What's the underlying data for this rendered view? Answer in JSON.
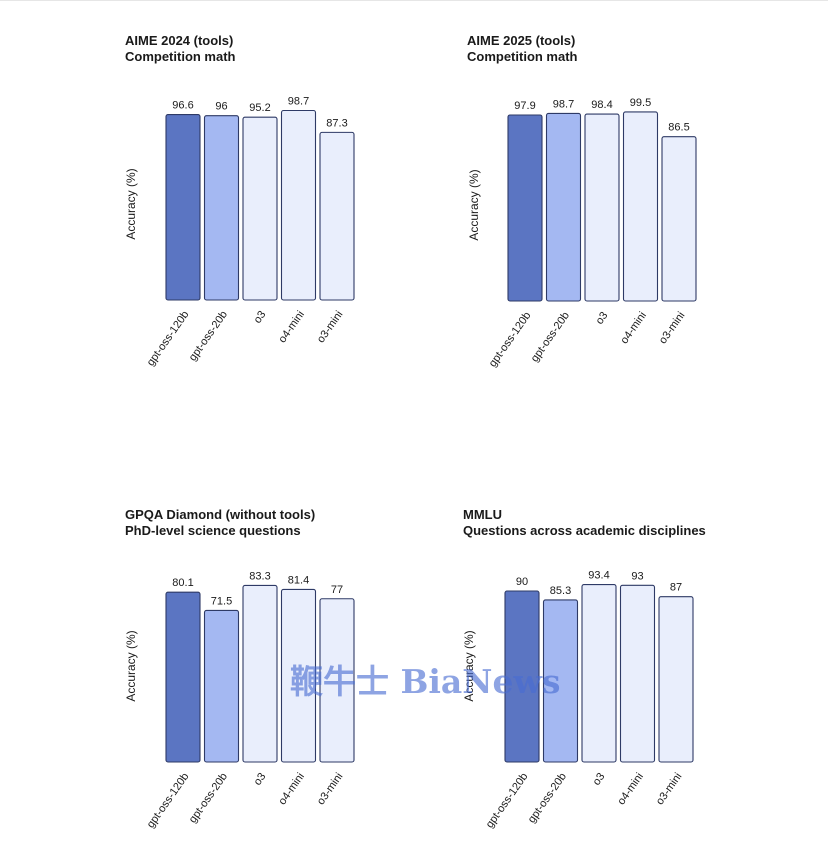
{
  "colors": {
    "gpt-oss-120b": "#5b75c2",
    "gpt-oss-20b": "#a4b8f2",
    "o3": "#e9eefc",
    "o4-mini": "#e9eefc",
    "o3-mini": "#e9eefc",
    "stroke": "#2e3a66"
  },
  "watermark": "鞭牛士 BiaNews",
  "chart_data": [
    {
      "type": "bar",
      "title": "AIME 2024 (tools)",
      "subtitle": "Competition math",
      "ylabel": "Accuracy (%)",
      "xlabel": "",
      "ylim": [
        0,
        100
      ],
      "grid": false,
      "categories": [
        "gpt-oss-120b",
        "gpt-oss-20b",
        "o3",
        "o4-mini",
        "o3-mini"
      ],
      "values": [
        96.6,
        96,
        95.2,
        98.7,
        87.3
      ],
      "labels": [
        "96.6",
        "96",
        "95.2",
        "98.7",
        "87.3"
      ]
    },
    {
      "type": "bar",
      "title": "AIME 2025 (tools)",
      "subtitle": "Competition math",
      "ylabel": "Accuracy (%)",
      "xlabel": "",
      "ylim": [
        0,
        100
      ],
      "grid": false,
      "categories": [
        "gpt-oss-120b",
        "gpt-oss-20b",
        "o3",
        "o4-mini",
        "o3-mini"
      ],
      "values": [
        97.9,
        98.7,
        98.4,
        99.5,
        86.5
      ],
      "labels": [
        "97.9",
        "98.7",
        "98.4",
        "99.5",
        "86.5"
      ]
    },
    {
      "type": "bar",
      "title": "GPQA Diamond (without tools)",
      "subtitle": "PhD-level science questions",
      "ylabel": "Accuracy (%)",
      "xlabel": "",
      "ylim": [
        0,
        100
      ],
      "grid": false,
      "categories": [
        "gpt-oss-120b",
        "gpt-oss-20b",
        "o3",
        "o4-mini",
        "o3-mini"
      ],
      "values": [
        80.1,
        71.5,
        83.3,
        81.4,
        77
      ],
      "labels": [
        "80.1",
        "71.5",
        "83.3",
        "81.4",
        "77"
      ]
    },
    {
      "type": "bar",
      "title": "MMLU",
      "subtitle": "Questions across academic disciplines",
      "ylabel": "Accuracy (%)",
      "xlabel": "",
      "ylim": [
        0,
        100
      ],
      "grid": false,
      "categories": [
        "gpt-oss-120b",
        "gpt-oss-20b",
        "o3",
        "o4-mini",
        "o3-mini"
      ],
      "values": [
        90,
        85.3,
        93.4,
        93,
        87
      ],
      "labels": [
        "90",
        "85.3",
        "93.4",
        "93",
        "87"
      ]
    }
  ]
}
